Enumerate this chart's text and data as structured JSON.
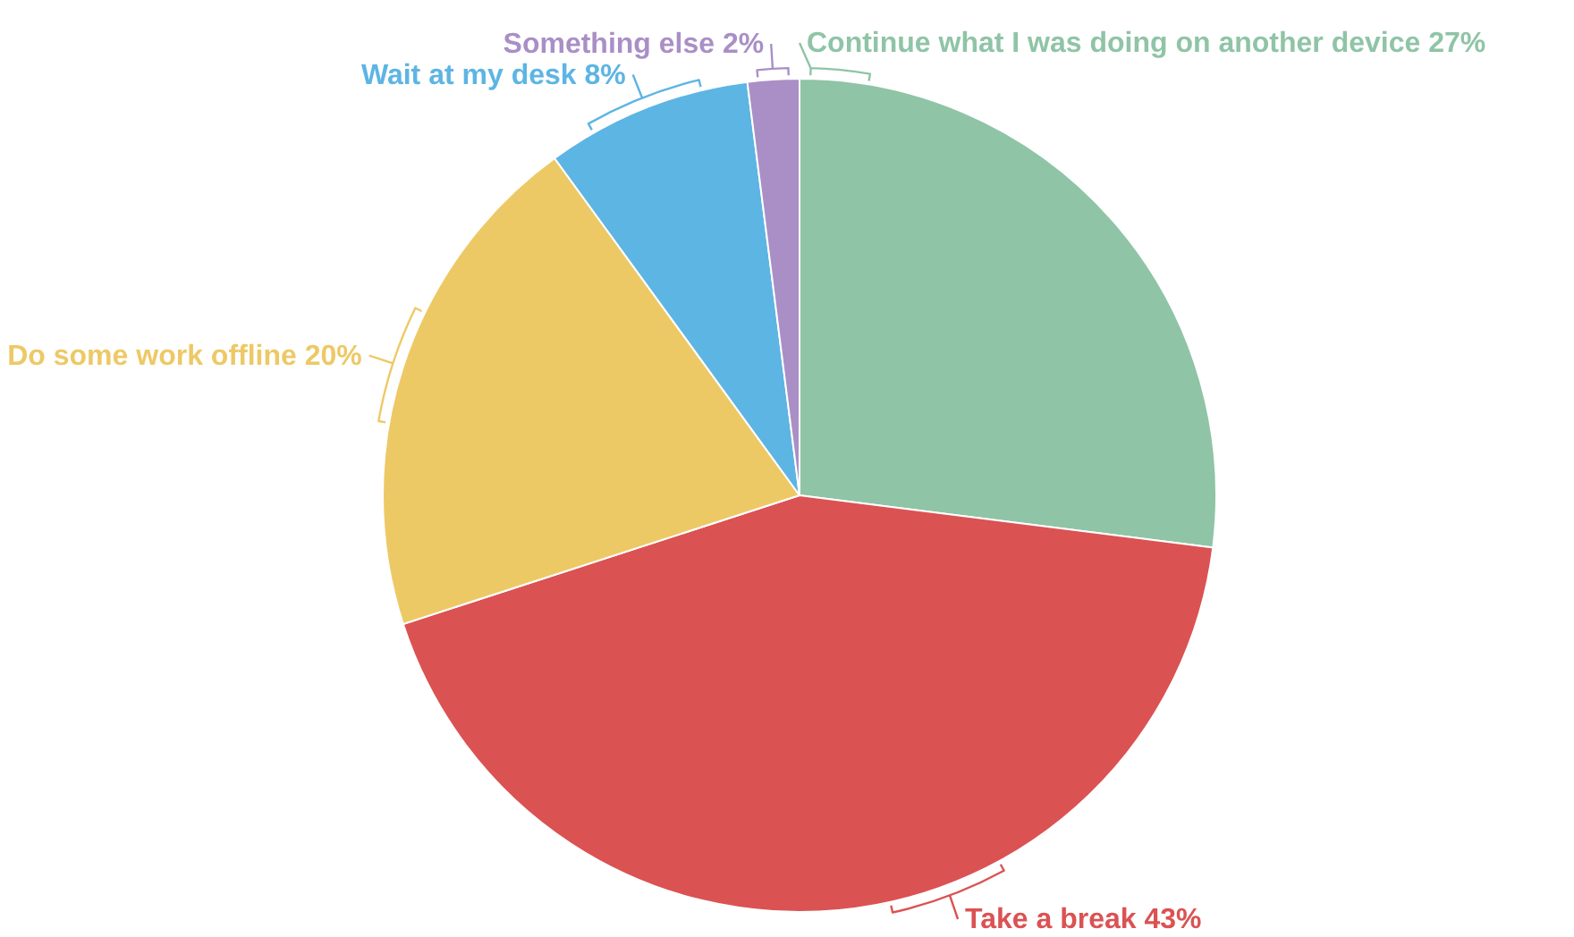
{
  "chart_data": {
    "type": "pie",
    "categories": [
      "Continue what I was doing on another device",
      "Take a break",
      "Do some work offline",
      "Wait at my desk",
      "Something else"
    ],
    "values": [
      27,
      43,
      20,
      8,
      2
    ],
    "colors": [
      "#8fc4a6",
      "#db5253",
      "#edc966",
      "#5db5e3",
      "#a98fc6"
    ],
    "value_labels": [
      "27%",
      "43%",
      "20%",
      "8%",
      "2%"
    ]
  }
}
